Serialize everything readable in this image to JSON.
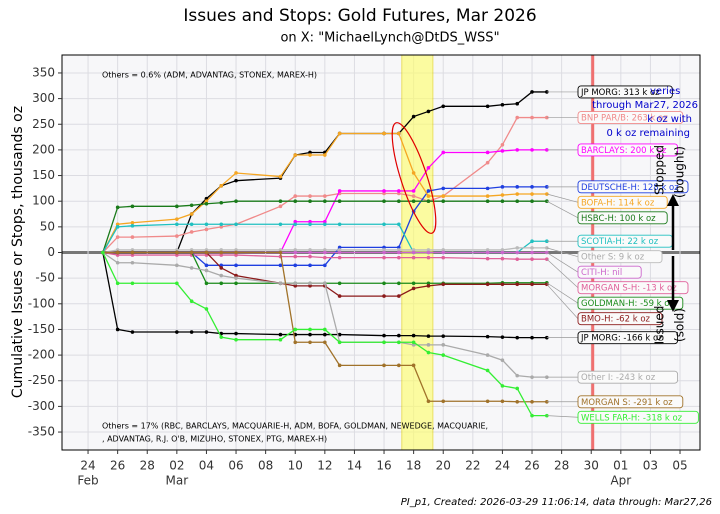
{
  "chart_data": {
    "type": "line",
    "title": "Issues and Stops: Gold Futures, Mar 2026",
    "subtitle": "on X:   \"MichaelLynch@DtDS_WSS\"",
    "y_label": "Cumulative Issues or Stops, thousands oz",
    "footer": "PI_p1, Created: 2026-03-29 11:06:14, data through: Mar27,26",
    "annotations": {
      "top_note": "Others = 0.6% (ADM, ADVANTAG, STONEX, MAREX-H)",
      "bottom_note": [
        "Others = 17% (RBC, BARCLAYS, MACQUARIE-H, ADM, BOFA, GOLDMAN, NEWEDGE, MACQUARIE,",
        ", ADVANTAG, R.J. O'B, MIZUHO, STONEX, PTG, MAREX-H)"
      ],
      "deliveries": [
        "veries",
        "through Mar27, 2026",
        "k oz with",
        "0 k oz remaining"
      ],
      "stopped": [
        "Stopped",
        "(bought)"
      ],
      "issued": [
        "Issued",
        "(sold)"
      ]
    },
    "xlim": [
      -1.76,
      41.35
    ],
    "xticks": [
      {
        "value": 0,
        "label": "24"
      },
      {
        "value": 2,
        "label": "26"
      },
      {
        "value": 4,
        "label": "28"
      },
      {
        "value": 6,
        "label": "02"
      },
      {
        "value": 8,
        "label": "04"
      },
      {
        "value": 10,
        "label": "06"
      },
      {
        "value": 12,
        "label": "08"
      },
      {
        "value": 14,
        "label": "10"
      },
      {
        "value": 16,
        "label": "12"
      },
      {
        "value": 18,
        "label": "14"
      },
      {
        "value": 20,
        "label": "16"
      },
      {
        "value": 22,
        "label": "18"
      },
      {
        "value": 24,
        "label": "20"
      },
      {
        "value": 26,
        "label": "22"
      },
      {
        "value": 28,
        "label": "24"
      },
      {
        "value": 30,
        "label": "26"
      },
      {
        "value": 32,
        "label": "28"
      },
      {
        "value": 34,
        "label": "30"
      },
      {
        "value": 36,
        "label": "01"
      },
      {
        "value": 38,
        "label": "03"
      },
      {
        "value": 40,
        "label": "05"
      }
    ],
    "month_labels": [
      {
        "value": 0,
        "label": "Feb"
      },
      {
        "value": 6,
        "label": "Mar"
      },
      {
        "value": 36,
        "label": "Apr"
      }
    ],
    "ylim": [
      -385,
      385
    ],
    "yticks": [
      -350,
      -300,
      -250,
      -200,
      -150,
      -100,
      -50,
      0,
      50,
      100,
      150,
      200,
      250,
      300,
      350
    ],
    "grid": true,
    "highlight": [
      21.2,
      23.3
    ],
    "deadline": 34.1,
    "x": [
      1,
      2,
      3,
      6,
      7,
      8,
      9,
      10,
      13,
      14,
      15,
      16,
      17,
      20,
      21,
      22,
      23,
      24,
      27,
      28,
      29,
      30,
      31
    ],
    "series": [
      {
        "name": "JP MORG",
        "label": "JP MORG: 313 k oz",
        "color": "#000000",
        "values": [
          0,
          0,
          0,
          0,
          75,
          105,
          130,
          140,
          145,
          190,
          195,
          195,
          232,
          232,
          232,
          265,
          275,
          285,
          285,
          288,
          290,
          313,
          313
        ]
      },
      {
        "name": "BNP PAR/B",
        "label": "BNP PAR/B: 263 k oz",
        "color": "#f08a8a",
        "values": [
          0,
          30,
          30,
          32,
          40,
          45,
          50,
          55,
          90,
          110,
          110,
          110,
          115,
          115,
          115,
          110,
          100,
          110,
          175,
          210,
          263,
          263,
          263
        ]
      },
      {
        "name": "BARCLAYS",
        "label": "BARCLAYS: 200 k oz",
        "color": "#ff00ff",
        "values": [
          0,
          0,
          0,
          0,
          0,
          0,
          0,
          0,
          0,
          60,
          60,
          60,
          120,
          120,
          120,
          120,
          165,
          195,
          195,
          198,
          200,
          200,
          200
        ]
      },
      {
        "name": "DEUTSCHE-H",
        "label": "DEUTSCHE-H: 128 k oz",
        "color": "#1f3fe0",
        "values": [
          0,
          0,
          0,
          0,
          0,
          -25,
          -25,
          -25,
          -25,
          -25,
          -25,
          -25,
          10,
          10,
          10,
          80,
          120,
          125,
          125,
          128,
          128,
          128,
          128
        ]
      },
      {
        "name": "BOFA-H",
        "label": "BOFA-H: 114 k oz",
        "color": "#f5a623",
        "values": [
          0,
          55,
          58,
          65,
          75,
          100,
          130,
          155,
          148,
          190,
          190,
          190,
          232,
          232,
          232,
          155,
          110,
          110,
          110,
          112,
          114,
          114,
          114
        ]
      },
      {
        "name": "HSBC-H",
        "label": "HSBC-H: 100 k oz",
        "color": "#1a7a1a",
        "values": [
          0,
          88,
          90,
          90,
          92,
          95,
          97,
          100,
          100,
          100,
          100,
          100,
          100,
          100,
          100,
          100,
          100,
          100,
          100,
          100,
          100,
          100,
          100
        ]
      },
      {
        "name": "SCOTIA-H",
        "label": "SCOTIA-H: 22 k oz",
        "color": "#20c0c0",
        "values": [
          0,
          50,
          52,
          55,
          55,
          55,
          55,
          55,
          55,
          55,
          55,
          55,
          55,
          55,
          55,
          0,
          0,
          0,
          0,
          0,
          0,
          22,
          22
        ]
      },
      {
        "name": "Other S",
        "label": "Other S: 9 k oz",
        "color": "#bbbbbb",
        "values": [
          0,
          5,
          5,
          5,
          5,
          5,
          5,
          5,
          5,
          5,
          5,
          5,
          5,
          5,
          5,
          5,
          5,
          5,
          5,
          5,
          9,
          9,
          9
        ]
      },
      {
        "name": "CITI-H",
        "label": "CITI-H: nil",
        "color": "#cc66cc",
        "values": [
          0,
          0,
          0,
          0,
          0,
          0,
          0,
          0,
          0,
          0,
          0,
          0,
          0,
          0,
          0,
          0,
          0,
          0,
          0,
          0,
          0,
          0,
          0
        ]
      },
      {
        "name": "MORGAN S-H",
        "label": "MORGAN S-H: -13 k oz",
        "color": "#e0609a",
        "values": [
          0,
          -5,
          -5,
          -5,
          -5,
          -5,
          -5,
          -5,
          -8,
          -8,
          -8,
          -10,
          -10,
          -10,
          -10,
          -10,
          -10,
          -10,
          -12,
          -12,
          -13,
          -13,
          -13
        ]
      },
      {
        "name": "GOLDMAN-H",
        "label": "GOLDMAN-H: -59 k oz",
        "color": "#1a8a1a",
        "values": [
          0,
          0,
          0,
          0,
          0,
          -60,
          -60,
          -60,
          -60,
          -60,
          -60,
          -60,
          -60,
          -60,
          -60,
          -60,
          -60,
          -60,
          -60,
          -59,
          -59,
          -59,
          -59
        ]
      },
      {
        "name": "BMO-H",
        "label": "BMO-H: -62 k oz",
        "color": "#8b1a1a",
        "values": [
          0,
          0,
          0,
          0,
          0,
          0,
          -30,
          -45,
          -60,
          -65,
          -65,
          -65,
          -85,
          -85,
          -85,
          -70,
          -65,
          -62,
          -62,
          -62,
          -62,
          -62,
          -62
        ]
      },
      {
        "name": "JP MORG",
        "label": "JP MORG: -166 k oz",
        "color": "#000000",
        "values": [
          0,
          -150,
          -155,
          -155,
          -155,
          -155,
          -158,
          -158,
          -160,
          -160,
          -160,
          -160,
          -160,
          -162,
          -162,
          -162,
          -163,
          -163,
          -164,
          -165,
          -166,
          -166,
          -166
        ]
      },
      {
        "name": "Other I",
        "label": "Other I: -243 k oz",
        "color": "#aaaaaa",
        "values": [
          0,
          -20,
          -20,
          -25,
          -30,
          -35,
          -45,
          -50,
          -60,
          -60,
          -60,
          -60,
          -175,
          -175,
          -175,
          -180,
          -180,
          -180,
          -200,
          -210,
          -240,
          -243,
          -243
        ]
      },
      {
        "name": "MORGAN S",
        "label": "MORGAN S: -291 k oz",
        "color": "#a0722a",
        "values": [
          0,
          0,
          0,
          0,
          0,
          0,
          0,
          0,
          0,
          -175,
          -175,
          -175,
          -220,
          -220,
          -220,
          -220,
          -290,
          -290,
          -290,
          -290,
          -291,
          -291,
          -291
        ]
      },
      {
        "name": "WELLS FAR-H",
        "label": "WELLS FAR-H: -318 k oz",
        "color": "#33ee33",
        "values": [
          0,
          -60,
          -60,
          -60,
          -95,
          -110,
          -165,
          -170,
          -170,
          -150,
          -150,
          -150,
          -175,
          -175,
          -175,
          -175,
          -195,
          -200,
          -230,
          -260,
          -265,
          -318,
          -318
        ]
      }
    ]
  }
}
